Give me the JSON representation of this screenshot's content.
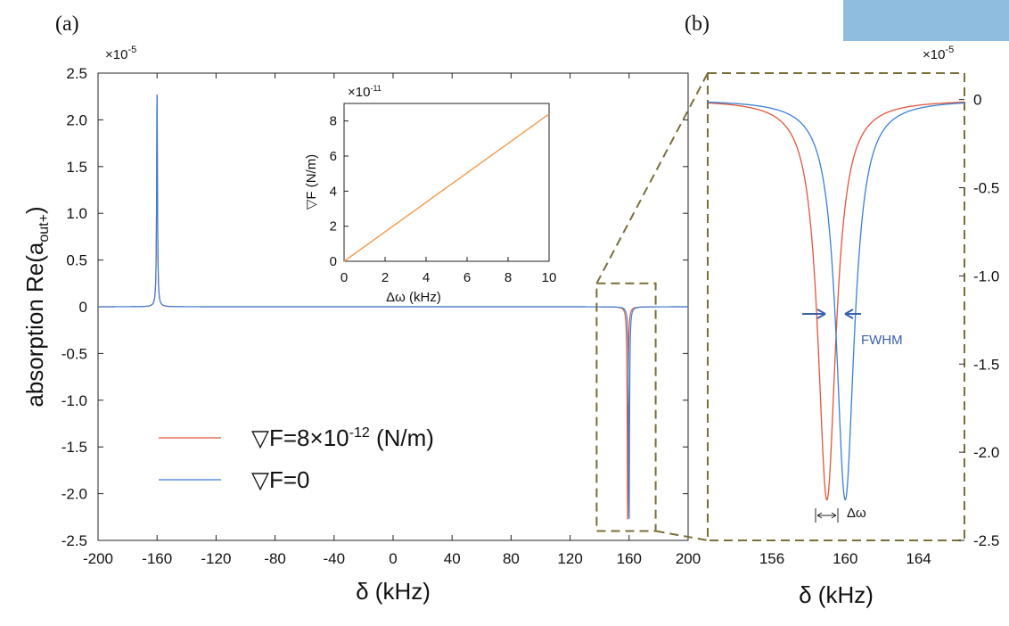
{
  "labels": {
    "panel_a": "(a)",
    "panel_b": "(b)",
    "exp_a": "×10",
    "exp_b": "×10",
    "exp_inset": "×10",
    "exp_a_pow": "-5",
    "exp_b_pow": "-5",
    "exp_inset_pow": "-11"
  },
  "chart_data": [
    {
      "panel": "(a)",
      "type": "line",
      "xlabel": "δ (kHz)",
      "ylabel": "absorption Re(a",
      "ylabel_sub": "out+",
      "ylabel_close": ")",
      "xlim": [
        -200,
        200
      ],
      "ylim": [
        -2.5,
        2.5
      ],
      "y_multiplier": "×10^-5",
      "xticks": [
        "-200",
        "-160",
        "-120",
        "-80",
        "-40",
        "0",
        "40",
        "80",
        "120",
        "160",
        "200"
      ],
      "yticks": [
        "2.5",
        "2.0",
        "1.5",
        "1.0",
        "0.5",
        "0",
        "-0.5",
        "-1.0",
        "-1.5",
        "-2.0",
        "-2.5"
      ],
      "legend": {
        "position": "lower-left",
        "entries": [
          {
            "label": "▽F=8×10",
            "pow": "-12",
            "unit": " (N/m)",
            "color": "#e0553a"
          },
          {
            "label": "▽F=0",
            "color": "#3a7fd5"
          }
        ]
      },
      "series": [
        {
          "name": "▽F=8×10^-12 (N/m)",
          "color": "#e0553a",
          "peaks": [
            {
              "x": -160,
              "y": 2.27
            },
            {
              "x": 159,
              "y": -2.27
            }
          ],
          "hwhm": 0.35
        },
        {
          "name": "▽F=0",
          "color": "#3a7fd5",
          "peaks": [
            {
              "x": -160,
              "y": 2.27
            },
            {
              "x": 160,
              "y": -2.27
            }
          ],
          "hwhm": 0.35
        }
      ],
      "zoom_box": {
        "x": [
          138,
          178
        ],
        "y": [
          -2.4,
          0.25
        ]
      }
    },
    {
      "panel": "inset",
      "type": "line",
      "xlabel": "Δω (kHz)",
      "ylabel": "▽F (N/m)",
      "xlim": [
        0,
        10
      ],
      "ylim": [
        0,
        9
      ],
      "y_multiplier": "×10^-11",
      "xticks": [
        "0",
        "2",
        "4",
        "6",
        "8",
        "10"
      ],
      "yticks": [
        "0",
        "2",
        "4",
        "6",
        "8"
      ],
      "series": [
        {
          "color": "#f39a4d",
          "x": [
            0,
            10
          ],
          "y": [
            0,
            8.4
          ]
        }
      ]
    },
    {
      "panel": "(b)",
      "type": "line",
      "xlabel": "δ (kHz)",
      "xlim": [
        152.5,
        166.5
      ],
      "ylim": [
        -2.5,
        0.15
      ],
      "y_multiplier": "×10^-5",
      "xticks": [
        "156",
        "160",
        "164"
      ],
      "yticks": [
        "0",
        "-0.5",
        "-1.0",
        "-1.5",
        "-2.0",
        "-2.5"
      ],
      "annotations": [
        "FWHM",
        "Δω"
      ],
      "series": [
        {
          "color": "#e0553a",
          "center": 159.0,
          "depth": -2.27,
          "hwhm": 0.6
        },
        {
          "color": "#3a7fd5",
          "center": 160.0,
          "depth": -2.27,
          "hwhm": 0.6
        }
      ]
    }
  ]
}
